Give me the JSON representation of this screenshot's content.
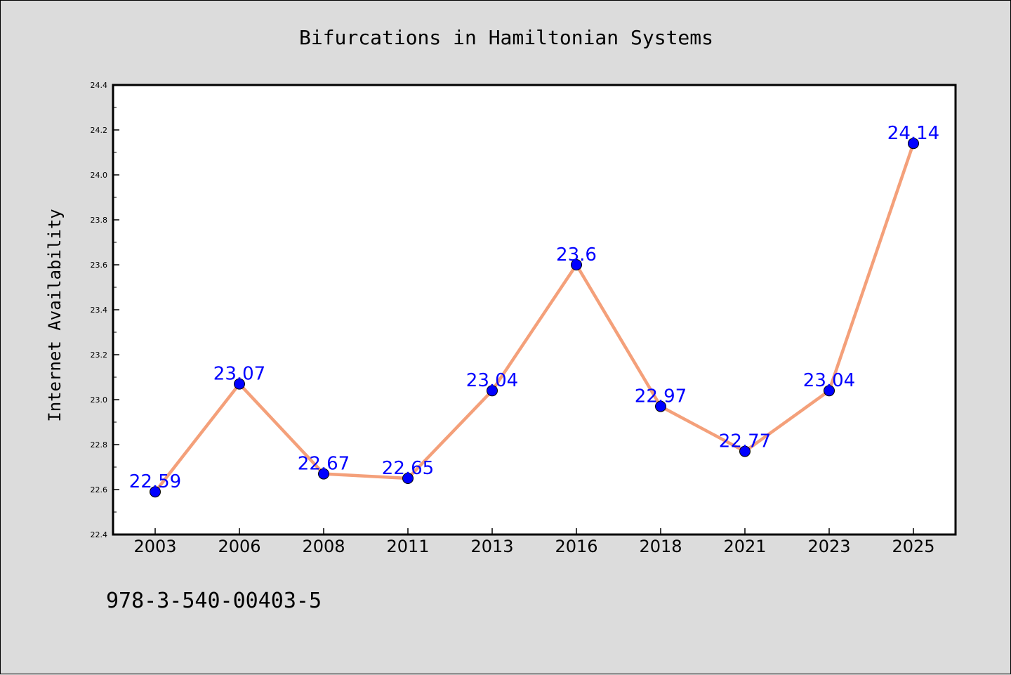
{
  "chart_data": {
    "type": "line",
    "title": "Bifurcations in Hamiltonian Systems",
    "xlabel": "",
    "ylabel": "Internet Availability",
    "categories": [
      "2003",
      "2006",
      "2008",
      "2011",
      "2013",
      "2016",
      "2018",
      "2021",
      "2023",
      "2025"
    ],
    "series": [
      {
        "values": [
          22.59,
          23.07,
          22.67,
          22.65,
          23.04,
          23.6,
          22.97,
          22.77,
          23.04,
          24.14
        ],
        "data_labels": [
          "22.59",
          "23.07",
          "22.67",
          "22.65",
          "23.04",
          "23.6",
          "22.97",
          "22.77",
          "23.04",
          "24.14"
        ],
        "line_color": "#f4a07a",
        "marker_color": "#0000ff"
      }
    ],
    "ylim": [
      22.4,
      24.4
    ],
    "yticks": [
      "22.4",
      "22.6",
      "22.8",
      "23.0",
      "23.2",
      "23.4",
      "23.6",
      "23.8",
      "24.0",
      "24.2",
      "24.4"
    ],
    "grid": false,
    "legend": "none"
  },
  "footnote": "978-3-540-00403-5",
  "colors": {
    "background": "#dcdcdc",
    "plot_background": "#ffffff",
    "line": "#f4a07a",
    "marker": "#0000ff",
    "data_label": "#0000ff"
  }
}
